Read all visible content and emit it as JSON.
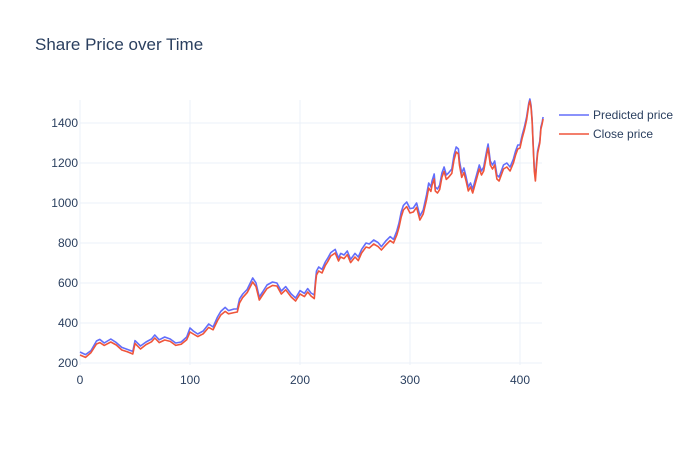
{
  "chart_data": {
    "type": "line",
    "title": "Share Price over Time",
    "xlabel": "",
    "ylabel": "",
    "xlim": [
      0,
      420
    ],
    "ylim": [
      190,
      1515
    ],
    "x_ticks": [
      0,
      100,
      200,
      300,
      400
    ],
    "y_ticks": [
      200,
      400,
      600,
      800,
      1000,
      1200,
      1400
    ],
    "grid": true,
    "legend_position": "top-right",
    "colors": {
      "background": "#ffffff",
      "grid": "#ebf0f8",
      "text": "#2a3f5f"
    },
    "series": [
      {
        "name": "Predicted price",
        "color": "#636efa",
        "points": [
          [
            0,
            255
          ],
          [
            5,
            242
          ],
          [
            10,
            262
          ],
          [
            15,
            310
          ],
          [
            18,
            318
          ],
          [
            22,
            300
          ],
          [
            28,
            320
          ],
          [
            33,
            302
          ],
          [
            38,
            278
          ],
          [
            43,
            268
          ],
          [
            48,
            258
          ],
          [
            50,
            312
          ],
          [
            55,
            285
          ],
          [
            60,
            305
          ],
          [
            65,
            320
          ],
          [
            68,
            340
          ],
          [
            72,
            316
          ],
          [
            77,
            330
          ],
          [
            82,
            320
          ],
          [
            87,
            300
          ],
          [
            92,
            305
          ],
          [
            97,
            330
          ],
          [
            100,
            375
          ],
          [
            103,
            360
          ],
          [
            107,
            345
          ],
          [
            112,
            360
          ],
          [
            117,
            395
          ],
          [
            121,
            380
          ],
          [
            125,
            430
          ],
          [
            128,
            458
          ],
          [
            132,
            478
          ],
          [
            135,
            462
          ],
          [
            140,
            470
          ],
          [
            143,
            470
          ],
          [
            145,
            520
          ],
          [
            148,
            545
          ],
          [
            152,
            568
          ],
          [
            157,
            625
          ],
          [
            160,
            600
          ],
          [
            163,
            530
          ],
          [
            166,
            555
          ],
          [
            170,
            590
          ],
          [
            175,
            605
          ],
          [
            179,
            600
          ],
          [
            183,
            560
          ],
          [
            187,
            582
          ],
          [
            192,
            545
          ],
          [
            196,
            525
          ],
          [
            200,
            562
          ],
          [
            204,
            548
          ],
          [
            207,
            572
          ],
          [
            210,
            550
          ],
          [
            213,
            540
          ],
          [
            214,
            608
          ],
          [
            215,
            660
          ],
          [
            217,
            680
          ],
          [
            220,
            668
          ],
          [
            223,
            705
          ],
          [
            225,
            722
          ],
          [
            228,
            752
          ],
          [
            232,
            768
          ],
          [
            235,
            725
          ],
          [
            237,
            748
          ],
          [
            240,
            740
          ],
          [
            243,
            760
          ],
          [
            246,
            718
          ],
          [
            250,
            748
          ],
          [
            253,
            730
          ],
          [
            256,
            768
          ],
          [
            260,
            800
          ],
          [
            263,
            795
          ],
          [
            267,
            815
          ],
          [
            271,
            802
          ],
          [
            274,
            782
          ],
          [
            278,
            810
          ],
          [
            282,
            832
          ],
          [
            285,
            818
          ],
          [
            288,
            860
          ],
          [
            290,
            900
          ],
          [
            292,
            955
          ],
          [
            294,
            988
          ],
          [
            297,
            1005
          ],
          [
            300,
            972
          ],
          [
            303,
            975
          ],
          [
            306,
            1000
          ],
          [
            309,
            935
          ],
          [
            312,
            965
          ],
          [
            315,
            1040
          ],
          [
            317,
            1100
          ],
          [
            319,
            1080
          ],
          [
            320,
            1110
          ],
          [
            322,
            1145
          ],
          [
            323,
            1080
          ],
          [
            325,
            1070
          ],
          [
            327,
            1090
          ],
          [
            329,
            1150
          ],
          [
            331,
            1180
          ],
          [
            333,
            1140
          ],
          [
            335,
            1150
          ],
          [
            338,
            1170
          ],
          [
            340,
            1240
          ],
          [
            342,
            1280
          ],
          [
            344,
            1270
          ],
          [
            345,
            1210
          ],
          [
            347,
            1150
          ],
          [
            349,
            1175
          ],
          [
            351,
            1130
          ],
          [
            353,
            1080
          ],
          [
            355,
            1100
          ],
          [
            357,
            1070
          ],
          [
            359,
            1110
          ],
          [
            361,
            1150
          ],
          [
            363,
            1190
          ],
          [
            365,
            1160
          ],
          [
            367,
            1180
          ],
          [
            369,
            1240
          ],
          [
            370,
            1270
          ],
          [
            371,
            1295
          ],
          [
            373,
            1210
          ],
          [
            375,
            1190
          ],
          [
            377,
            1210
          ],
          [
            379,
            1140
          ],
          [
            381,
            1130
          ],
          [
            383,
            1160
          ],
          [
            385,
            1190
          ],
          [
            388,
            1200
          ],
          [
            391,
            1180
          ],
          [
            394,
            1220
          ],
          [
            396,
            1260
          ],
          [
            398,
            1290
          ],
          [
            400,
            1290
          ],
          [
            402,
            1340
          ],
          [
            404,
            1380
          ],
          [
            406,
            1430
          ],
          [
            408,
            1500
          ],
          [
            409,
            1520
          ],
          [
            410,
            1490
          ],
          [
            411,
            1420
          ],
          [
            412,
            1290
          ],
          [
            413,
            1170
          ],
          [
            414,
            1130
          ],
          [
            415,
            1200
          ],
          [
            416,
            1260
          ],
          [
            418,
            1310
          ],
          [
            419,
            1380
          ],
          [
            420,
            1400
          ],
          [
            421,
            1430
          ]
        ]
      },
      {
        "name": "Close price",
        "color": "#ef553b",
        "points": [
          [
            0,
            240
          ],
          [
            5,
            228
          ],
          [
            10,
            252
          ],
          [
            15,
            295
          ],
          [
            18,
            302
          ],
          [
            22,
            288
          ],
          [
            28,
            305
          ],
          [
            33,
            290
          ],
          [
            38,
            265
          ],
          [
            43,
            256
          ],
          [
            48,
            245
          ],
          [
            50,
            298
          ],
          [
            55,
            270
          ],
          [
            60,
            292
          ],
          [
            65,
            306
          ],
          [
            68,
            325
          ],
          [
            72,
            302
          ],
          [
            77,
            315
          ],
          [
            82,
            308
          ],
          [
            87,
            288
          ],
          [
            92,
            294
          ],
          [
            97,
            316
          ],
          [
            100,
            355
          ],
          [
            103,
            345
          ],
          [
            107,
            332
          ],
          [
            112,
            346
          ],
          [
            117,
            378
          ],
          [
            121,
            366
          ],
          [
            125,
            412
          ],
          [
            128,
            440
          ],
          [
            132,
            458
          ],
          [
            135,
            446
          ],
          [
            140,
            452
          ],
          [
            143,
            455
          ],
          [
            145,
            500
          ],
          [
            148,
            528
          ],
          [
            152,
            552
          ],
          [
            157,
            605
          ],
          [
            160,
            582
          ],
          [
            163,
            515
          ],
          [
            166,
            540
          ],
          [
            170,
            572
          ],
          [
            175,
            588
          ],
          [
            179,
            585
          ],
          [
            183,
            545
          ],
          [
            187,
            566
          ],
          [
            192,
            530
          ],
          [
            196,
            510
          ],
          [
            200,
            545
          ],
          [
            204,
            532
          ],
          [
            207,
            555
          ],
          [
            210,
            535
          ],
          [
            213,
            522
          ],
          [
            214,
            590
          ],
          [
            215,
            640
          ],
          [
            217,
            660
          ],
          [
            220,
            650
          ],
          [
            223,
            688
          ],
          [
            225,
            705
          ],
          [
            228,
            735
          ],
          [
            232,
            750
          ],
          [
            235,
            710
          ],
          [
            237,
            730
          ],
          [
            240,
            722
          ],
          [
            243,
            742
          ],
          [
            246,
            702
          ],
          [
            250,
            730
          ],
          [
            253,
            712
          ],
          [
            256,
            750
          ],
          [
            260,
            780
          ],
          [
            263,
            775
          ],
          [
            267,
            795
          ],
          [
            271,
            782
          ],
          [
            274,
            765
          ],
          [
            278,
            790
          ],
          [
            282,
            812
          ],
          [
            285,
            800
          ],
          [
            288,
            840
          ],
          [
            290,
            878
          ],
          [
            292,
            930
          ],
          [
            294,
            965
          ],
          [
            297,
            982
          ],
          [
            300,
            950
          ],
          [
            303,
            955
          ],
          [
            306,
            978
          ],
          [
            309,
            915
          ],
          [
            312,
            945
          ],
          [
            315,
            1015
          ],
          [
            317,
            1075
          ],
          [
            319,
            1058
          ],
          [
            320,
            1088
          ],
          [
            322,
            1120
          ],
          [
            323,
            1060
          ],
          [
            325,
            1050
          ],
          [
            327,
            1068
          ],
          [
            329,
            1128
          ],
          [
            331,
            1158
          ],
          [
            333,
            1118
          ],
          [
            335,
            1128
          ],
          [
            338,
            1148
          ],
          [
            340,
            1215
          ],
          [
            342,
            1255
          ],
          [
            344,
            1245
          ],
          [
            345,
            1188
          ],
          [
            347,
            1128
          ],
          [
            349,
            1152
          ],
          [
            351,
            1110
          ],
          [
            353,
            1060
          ],
          [
            355,
            1080
          ],
          [
            357,
            1050
          ],
          [
            359,
            1090
          ],
          [
            361,
            1130
          ],
          [
            363,
            1170
          ],
          [
            365,
            1140
          ],
          [
            367,
            1160
          ],
          [
            369,
            1220
          ],
          [
            370,
            1250
          ],
          [
            371,
            1275
          ],
          [
            373,
            1190
          ],
          [
            375,
            1170
          ],
          [
            377,
            1190
          ],
          [
            379,
            1120
          ],
          [
            381,
            1110
          ],
          [
            383,
            1140
          ],
          [
            385,
            1170
          ],
          [
            388,
            1180
          ],
          [
            391,
            1160
          ],
          [
            394,
            1200
          ],
          [
            396,
            1240
          ],
          [
            398,
            1270
          ],
          [
            400,
            1275
          ],
          [
            402,
            1325
          ],
          [
            404,
            1365
          ],
          [
            406,
            1415
          ],
          [
            408,
            1490
          ],
          [
            409,
            1510
          ],
          [
            410,
            1480
          ],
          [
            411,
            1410
          ],
          [
            412,
            1280
          ],
          [
            413,
            1160
          ],
          [
            414,
            1110
          ],
          [
            415,
            1185
          ],
          [
            416,
            1248
          ],
          [
            418,
            1300
          ],
          [
            419,
            1370
          ],
          [
            420,
            1392
          ],
          [
            421,
            1420
          ]
        ]
      }
    ]
  }
}
